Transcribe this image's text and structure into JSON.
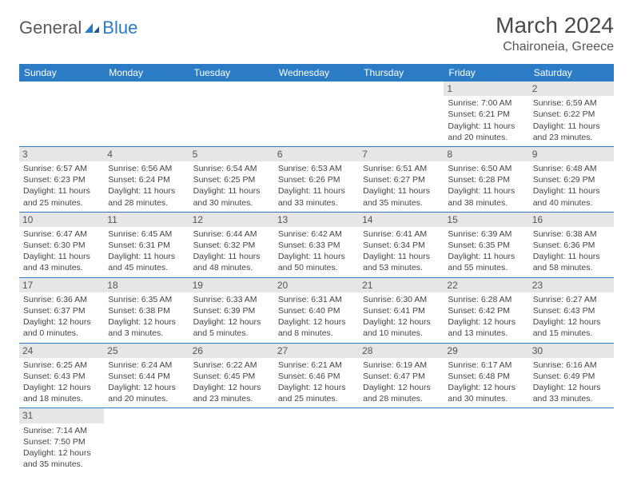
{
  "logo": {
    "part1": "General",
    "part2": "Blue"
  },
  "title": "March 2024",
  "location": "Chaironeia, Greece",
  "colors": {
    "header_bg": "#2b7cc4",
    "header_text": "#ffffff",
    "daynum_bg": "#e6e6e6",
    "border": "#2b7cc4",
    "logo_general": "#5a5a5a",
    "logo_blue": "#2a7ac4"
  },
  "weekdays": [
    "Sunday",
    "Monday",
    "Tuesday",
    "Wednesday",
    "Thursday",
    "Friday",
    "Saturday"
  ],
  "weeks": [
    [
      null,
      null,
      null,
      null,
      null,
      {
        "n": "1",
        "sunrise": "Sunrise: 7:00 AM",
        "sunset": "Sunset: 6:21 PM",
        "daylight": "Daylight: 11 hours and 20 minutes."
      },
      {
        "n": "2",
        "sunrise": "Sunrise: 6:59 AM",
        "sunset": "Sunset: 6:22 PM",
        "daylight": "Daylight: 11 hours and 23 minutes."
      }
    ],
    [
      {
        "n": "3",
        "sunrise": "Sunrise: 6:57 AM",
        "sunset": "Sunset: 6:23 PM",
        "daylight": "Daylight: 11 hours and 25 minutes."
      },
      {
        "n": "4",
        "sunrise": "Sunrise: 6:56 AM",
        "sunset": "Sunset: 6:24 PM",
        "daylight": "Daylight: 11 hours and 28 minutes."
      },
      {
        "n": "5",
        "sunrise": "Sunrise: 6:54 AM",
        "sunset": "Sunset: 6:25 PM",
        "daylight": "Daylight: 11 hours and 30 minutes."
      },
      {
        "n": "6",
        "sunrise": "Sunrise: 6:53 AM",
        "sunset": "Sunset: 6:26 PM",
        "daylight": "Daylight: 11 hours and 33 minutes."
      },
      {
        "n": "7",
        "sunrise": "Sunrise: 6:51 AM",
        "sunset": "Sunset: 6:27 PM",
        "daylight": "Daylight: 11 hours and 35 minutes."
      },
      {
        "n": "8",
        "sunrise": "Sunrise: 6:50 AM",
        "sunset": "Sunset: 6:28 PM",
        "daylight": "Daylight: 11 hours and 38 minutes."
      },
      {
        "n": "9",
        "sunrise": "Sunrise: 6:48 AM",
        "sunset": "Sunset: 6:29 PM",
        "daylight": "Daylight: 11 hours and 40 minutes."
      }
    ],
    [
      {
        "n": "10",
        "sunrise": "Sunrise: 6:47 AM",
        "sunset": "Sunset: 6:30 PM",
        "daylight": "Daylight: 11 hours and 43 minutes."
      },
      {
        "n": "11",
        "sunrise": "Sunrise: 6:45 AM",
        "sunset": "Sunset: 6:31 PM",
        "daylight": "Daylight: 11 hours and 45 minutes."
      },
      {
        "n": "12",
        "sunrise": "Sunrise: 6:44 AM",
        "sunset": "Sunset: 6:32 PM",
        "daylight": "Daylight: 11 hours and 48 minutes."
      },
      {
        "n": "13",
        "sunrise": "Sunrise: 6:42 AM",
        "sunset": "Sunset: 6:33 PM",
        "daylight": "Daylight: 11 hours and 50 minutes."
      },
      {
        "n": "14",
        "sunrise": "Sunrise: 6:41 AM",
        "sunset": "Sunset: 6:34 PM",
        "daylight": "Daylight: 11 hours and 53 minutes."
      },
      {
        "n": "15",
        "sunrise": "Sunrise: 6:39 AM",
        "sunset": "Sunset: 6:35 PM",
        "daylight": "Daylight: 11 hours and 55 minutes."
      },
      {
        "n": "16",
        "sunrise": "Sunrise: 6:38 AM",
        "sunset": "Sunset: 6:36 PM",
        "daylight": "Daylight: 11 hours and 58 minutes."
      }
    ],
    [
      {
        "n": "17",
        "sunrise": "Sunrise: 6:36 AM",
        "sunset": "Sunset: 6:37 PM",
        "daylight": "Daylight: 12 hours and 0 minutes."
      },
      {
        "n": "18",
        "sunrise": "Sunrise: 6:35 AM",
        "sunset": "Sunset: 6:38 PM",
        "daylight": "Daylight: 12 hours and 3 minutes."
      },
      {
        "n": "19",
        "sunrise": "Sunrise: 6:33 AM",
        "sunset": "Sunset: 6:39 PM",
        "daylight": "Daylight: 12 hours and 5 minutes."
      },
      {
        "n": "20",
        "sunrise": "Sunrise: 6:31 AM",
        "sunset": "Sunset: 6:40 PM",
        "daylight": "Daylight: 12 hours and 8 minutes."
      },
      {
        "n": "21",
        "sunrise": "Sunrise: 6:30 AM",
        "sunset": "Sunset: 6:41 PM",
        "daylight": "Daylight: 12 hours and 10 minutes."
      },
      {
        "n": "22",
        "sunrise": "Sunrise: 6:28 AM",
        "sunset": "Sunset: 6:42 PM",
        "daylight": "Daylight: 12 hours and 13 minutes."
      },
      {
        "n": "23",
        "sunrise": "Sunrise: 6:27 AM",
        "sunset": "Sunset: 6:43 PM",
        "daylight": "Daylight: 12 hours and 15 minutes."
      }
    ],
    [
      {
        "n": "24",
        "sunrise": "Sunrise: 6:25 AM",
        "sunset": "Sunset: 6:43 PM",
        "daylight": "Daylight: 12 hours and 18 minutes."
      },
      {
        "n": "25",
        "sunrise": "Sunrise: 6:24 AM",
        "sunset": "Sunset: 6:44 PM",
        "daylight": "Daylight: 12 hours and 20 minutes."
      },
      {
        "n": "26",
        "sunrise": "Sunrise: 6:22 AM",
        "sunset": "Sunset: 6:45 PM",
        "daylight": "Daylight: 12 hours and 23 minutes."
      },
      {
        "n": "27",
        "sunrise": "Sunrise: 6:21 AM",
        "sunset": "Sunset: 6:46 PM",
        "daylight": "Daylight: 12 hours and 25 minutes."
      },
      {
        "n": "28",
        "sunrise": "Sunrise: 6:19 AM",
        "sunset": "Sunset: 6:47 PM",
        "daylight": "Daylight: 12 hours and 28 minutes."
      },
      {
        "n": "29",
        "sunrise": "Sunrise: 6:17 AM",
        "sunset": "Sunset: 6:48 PM",
        "daylight": "Daylight: 12 hours and 30 minutes."
      },
      {
        "n": "30",
        "sunrise": "Sunrise: 6:16 AM",
        "sunset": "Sunset: 6:49 PM",
        "daylight": "Daylight: 12 hours and 33 minutes."
      }
    ],
    [
      {
        "n": "31",
        "sunrise": "Sunrise: 7:14 AM",
        "sunset": "Sunset: 7:50 PM",
        "daylight": "Daylight: 12 hours and 35 minutes."
      },
      null,
      null,
      null,
      null,
      null,
      null
    ]
  ]
}
